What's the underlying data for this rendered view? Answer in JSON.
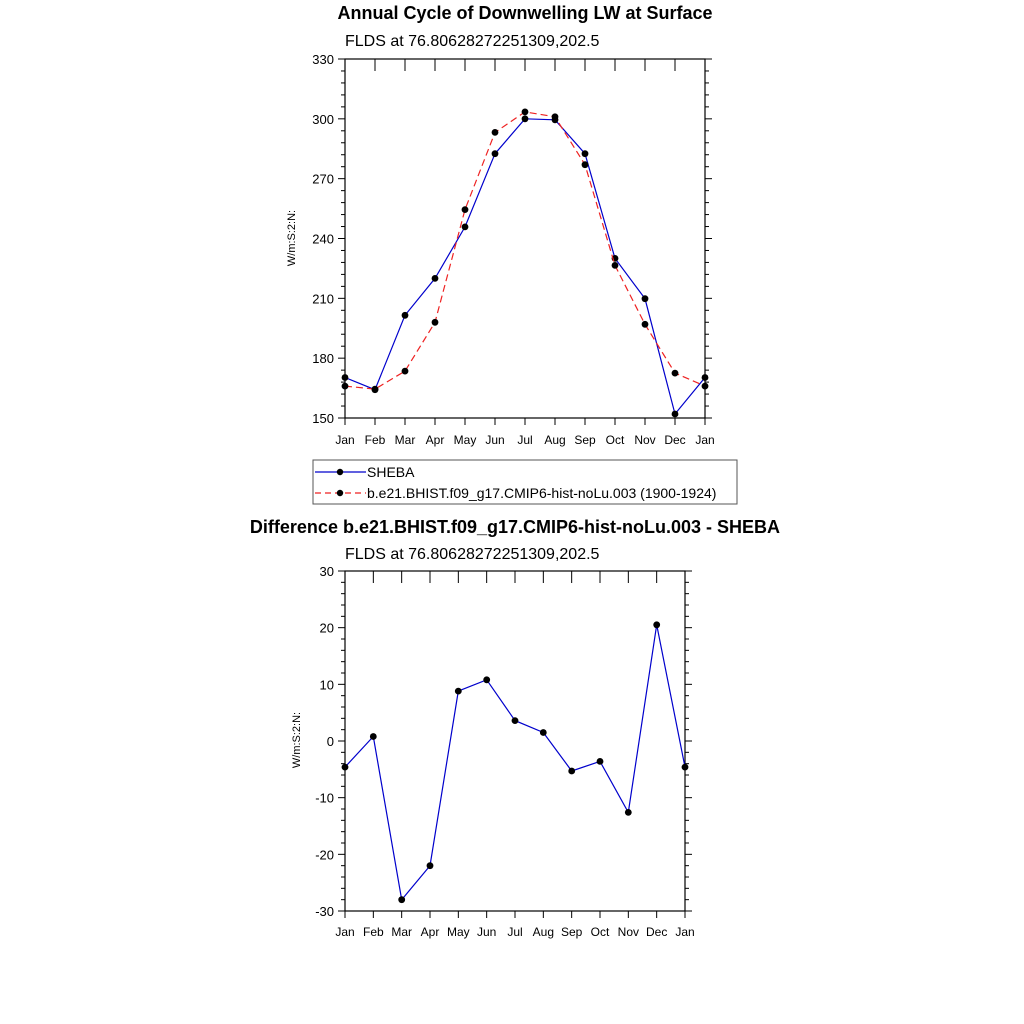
{
  "chart_data": [
    {
      "type": "line",
      "title": "Annual Cycle of Downwelling LW at Surface",
      "subtitle": "FLDS at 76.80628272251309,202.5",
      "ylabel": "W/m:S:2:N:",
      "xlabel": "",
      "categories": [
        "Jan",
        "Feb",
        "Mar",
        "Apr",
        "May",
        "Jun",
        "Jul",
        "Aug",
        "Sep",
        "Oct",
        "Nov",
        "Dec",
        "Jan"
      ],
      "ylim": [
        150,
        330
      ],
      "yticks": [
        150,
        180,
        210,
        240,
        270,
        300,
        330
      ],
      "yticklabels": [
        "150",
        "180",
        "210",
        "240",
        "270",
        "300",
        "330"
      ],
      "series": [
        {
          "name": "SHEBA",
          "color": "#0000cc",
          "dash": "solid",
          "values": [
            170.3,
            164.2,
            201.5,
            220.0,
            245.8,
            282.5,
            300.0,
            299.5,
            282.5,
            230.0,
            209.8,
            152.0,
            170.3
          ]
        },
        {
          "name": "b.e21.BHIST.f09_g17.CMIP6-hist-noLu.003 (1900-1924)",
          "color": "#ee2222",
          "dash": "dashed",
          "values": [
            166.0,
            164.5,
            173.5,
            198.0,
            254.5,
            293.2,
            303.5,
            301.0,
            277.0,
            226.5,
            197.0,
            172.5,
            166.0
          ]
        }
      ],
      "legend": {
        "position": "below",
        "entries": [
          "SHEBA",
          "b.e21.BHIST.f09_g17.CMIP6-hist-noLu.003 (1900-1924)"
        ]
      }
    },
    {
      "type": "line",
      "title": "Difference b.e21.BHIST.f09_g17.CMIP6-hist-noLu.003 - SHEBA",
      "subtitle": "FLDS at 76.80628272251309,202.5",
      "ylabel": "W/m:S:2:N:",
      "xlabel": "",
      "categories": [
        "Jan",
        "Feb",
        "Mar",
        "Apr",
        "May",
        "Jun",
        "Jul",
        "Aug",
        "Sep",
        "Oct",
        "Nov",
        "Dec",
        "Jan"
      ],
      "ylim": [
        -30,
        30
      ],
      "yticks": [
        -30,
        -20,
        -10,
        0,
        10,
        20,
        30
      ],
      "yticklabels": [
        "-30",
        "-20",
        "-10",
        "0",
        "10",
        "20",
        "30"
      ],
      "series": [
        {
          "name": "Difference",
          "color": "#0000cc",
          "dash": "solid",
          "values": [
            -4.6,
            0.8,
            -28.0,
            -22.0,
            8.8,
            10.8,
            3.6,
            1.5,
            -5.3,
            -3.6,
            -12.6,
            20.5,
            -4.6
          ]
        }
      ]
    }
  ]
}
